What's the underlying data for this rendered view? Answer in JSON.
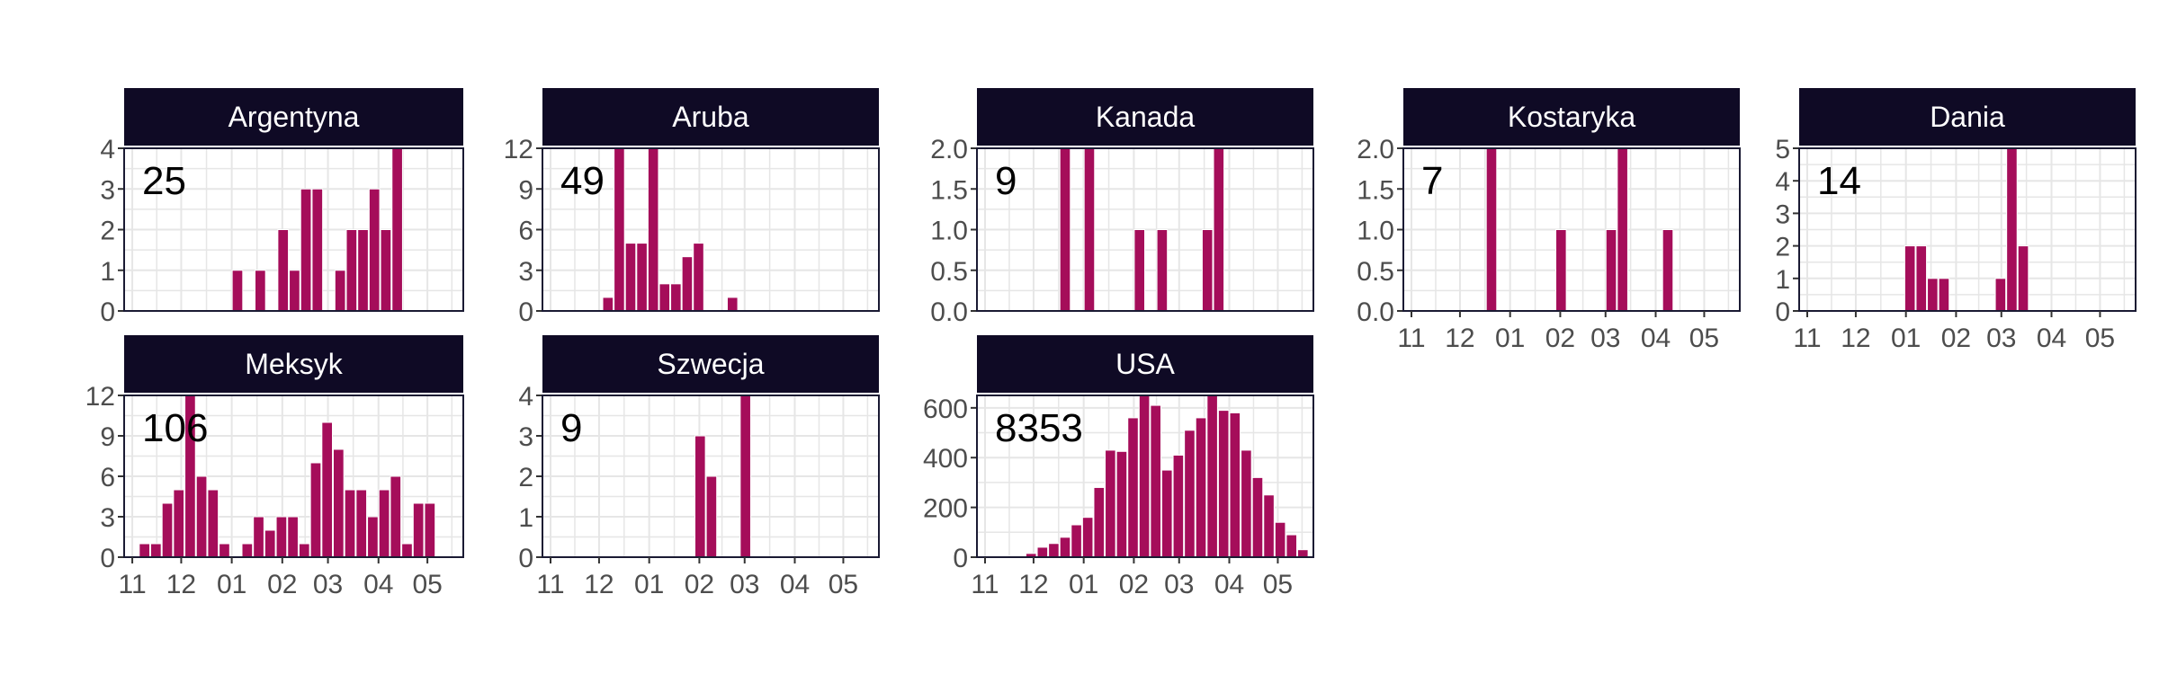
{
  "colors": {
    "bar": "#a50d5a",
    "strip": "#0f0a25",
    "panel_border": "#1a1a33",
    "grid": "#e6e6e6",
    "tick_text": "#4d4d4d"
  },
  "chart_data": [
    {
      "type": "bar",
      "title": "Argentyna",
      "count_label": "25",
      "ylim": [
        0,
        4
      ],
      "yticks": [
        "0",
        "1",
        "2",
        "3",
        "4"
      ],
      "xticks": [],
      "bars": [
        {
          "week": "2021-01-01",
          "value": 1
        },
        {
          "week": "2021-01-15",
          "value": 1
        },
        {
          "week": "2021-01-29",
          "value": 2
        },
        {
          "week": "2021-02-05",
          "value": 1
        },
        {
          "week": "2021-02-12",
          "value": 3
        },
        {
          "week": "2021-02-19",
          "value": 3
        },
        {
          "week": "2021-03-05",
          "value": 1
        },
        {
          "week": "2021-03-12",
          "value": 2
        },
        {
          "week": "2021-03-19",
          "value": 2
        },
        {
          "week": "2021-03-26",
          "value": 3
        },
        {
          "week": "2021-04-02",
          "value": 2
        },
        {
          "week": "2021-04-09",
          "value": 4
        }
      ]
    },
    {
      "type": "bar",
      "title": "Aruba",
      "count_label": "49",
      "ylim": [
        0,
        12
      ],
      "yticks": [
        "0",
        "3",
        "6",
        "9",
        "12"
      ],
      "xticks": [],
      "bars": [
        {
          "week": "2020-12-03",
          "value": 1
        },
        {
          "week": "2020-12-10",
          "value": 12
        },
        {
          "week": "2020-12-17",
          "value": 5
        },
        {
          "week": "2020-12-24",
          "value": 5
        },
        {
          "week": "2020-12-31",
          "value": 12
        },
        {
          "week": "2021-01-07",
          "value": 2
        },
        {
          "week": "2021-01-14",
          "value": 2
        },
        {
          "week": "2021-01-21",
          "value": 4
        },
        {
          "week": "2021-01-28",
          "value": 5
        },
        {
          "week": "2021-02-18",
          "value": 1
        }
      ]
    },
    {
      "type": "bar",
      "title": "Kanada",
      "count_label": "9",
      "ylim": [
        0,
        2
      ],
      "yticks": [
        "0.0",
        "0.5",
        "1.0",
        "1.5",
        "2.0"
      ],
      "xticks": [],
      "bars": [
        {
          "week": "2020-12-17",
          "value": 2
        },
        {
          "week": "2021-01-01",
          "value": 2
        },
        {
          "week": "2021-02-01",
          "value": 1
        },
        {
          "week": "2021-02-15",
          "value": 1
        },
        {
          "week": "2021-03-15",
          "value": 1
        },
        {
          "week": "2021-03-22",
          "value": 2
        }
      ]
    },
    {
      "type": "bar",
      "title": "Kostaryka",
      "count_label": "7",
      "ylim": [
        0,
        2
      ],
      "yticks": [
        "0.0",
        "0.5",
        "1.0",
        "1.5",
        "2.0"
      ],
      "xticks": [
        "11",
        "12",
        "01",
        "02",
        "03",
        "04",
        "05"
      ],
      "bars": [
        {
          "week": "2020-12-17",
          "value": 2
        },
        {
          "week": "2021-01-29",
          "value": 1
        },
        {
          "week": "2021-03-01",
          "value": 1
        },
        {
          "week": "2021-03-08",
          "value": 2
        },
        {
          "week": "2021-04-05",
          "value": 1
        }
      ]
    },
    {
      "type": "bar",
      "title": "Dania",
      "count_label": "14",
      "ylim": [
        0,
        5
      ],
      "yticks": [
        "0",
        "1",
        "2",
        "3",
        "4",
        "5"
      ],
      "xticks": [
        "11",
        "12",
        "01",
        "02",
        "03",
        "04",
        "05"
      ],
      "bars": [
        {
          "week": "2020-12-31",
          "value": 2
        },
        {
          "week": "2021-01-07",
          "value": 2
        },
        {
          "week": "2021-01-14",
          "value": 1
        },
        {
          "week": "2021-01-21",
          "value": 1
        },
        {
          "week": "2021-02-25",
          "value": 1
        },
        {
          "week": "2021-03-04",
          "value": 5
        },
        {
          "week": "2021-03-11",
          "value": 2
        }
      ]
    },
    {
      "type": "bar",
      "title": "Meksyk",
      "count_label": "106",
      "ylim": [
        0,
        12
      ],
      "yticks": [
        "0",
        "3",
        "6",
        "9",
        "12"
      ],
      "xticks": [
        "11",
        "12",
        "01",
        "02",
        "03",
        "04",
        "05"
      ],
      "bars": [
        {
          "week": "2020-11-05",
          "value": 1
        },
        {
          "week": "2020-11-12",
          "value": 1
        },
        {
          "week": "2020-11-19",
          "value": 4
        },
        {
          "week": "2020-11-26",
          "value": 5
        },
        {
          "week": "2020-12-03",
          "value": 12
        },
        {
          "week": "2020-12-10",
          "value": 6
        },
        {
          "week": "2020-12-17",
          "value": 5
        },
        {
          "week": "2020-12-24",
          "value": 1
        },
        {
          "week": "2021-01-07",
          "value": 1
        },
        {
          "week": "2021-01-14",
          "value": 3
        },
        {
          "week": "2021-01-21",
          "value": 2
        },
        {
          "week": "2021-01-28",
          "value": 3
        },
        {
          "week": "2021-02-04",
          "value": 3
        },
        {
          "week": "2021-02-11",
          "value": 1
        },
        {
          "week": "2021-02-18",
          "value": 7
        },
        {
          "week": "2021-02-25",
          "value": 10
        },
        {
          "week": "2021-03-04",
          "value": 8
        },
        {
          "week": "2021-03-11",
          "value": 5
        },
        {
          "week": "2021-03-18",
          "value": 5
        },
        {
          "week": "2021-03-25",
          "value": 3
        },
        {
          "week": "2021-04-01",
          "value": 5
        },
        {
          "week": "2021-04-08",
          "value": 6
        },
        {
          "week": "2021-04-15",
          "value": 1
        },
        {
          "week": "2021-04-22",
          "value": 4
        },
        {
          "week": "2021-04-29",
          "value": 4
        }
      ]
    },
    {
      "type": "bar",
      "title": "Szwecja",
      "count_label": "9",
      "ylim": [
        0,
        4
      ],
      "yticks": [
        "0",
        "1",
        "2",
        "3",
        "4"
      ],
      "xticks": [
        "11",
        "12",
        "01",
        "02",
        "03",
        "04",
        "05"
      ],
      "bars": [
        {
          "week": "2021-01-29",
          "value": 3
        },
        {
          "week": "2021-02-05",
          "value": 2
        },
        {
          "week": "2021-02-26",
          "value": 4
        }
      ]
    },
    {
      "type": "bar",
      "title": "USA",
      "count_label": "8353",
      "ylim": [
        0,
        650
      ],
      "yticks": [
        "0",
        "200",
        "400",
        "600"
      ],
      "xticks": [
        "11",
        "12",
        "01",
        "02",
        "03",
        "04",
        "05"
      ],
      "bars": [
        {
          "week": "2020-11-05",
          "value": 2
        },
        {
          "week": "2020-11-12",
          "value": 3
        },
        {
          "week": "2020-11-19",
          "value": 5
        },
        {
          "week": "2020-11-26",
          "value": 15
        },
        {
          "week": "2020-12-03",
          "value": 40
        },
        {
          "week": "2020-12-10",
          "value": 55
        },
        {
          "week": "2020-12-17",
          "value": 80
        },
        {
          "week": "2020-12-24",
          "value": 130
        },
        {
          "week": "2020-12-31",
          "value": 160
        },
        {
          "week": "2021-01-07",
          "value": 280
        },
        {
          "week": "2021-01-14",
          "value": 430
        },
        {
          "week": "2021-01-21",
          "value": 425
        },
        {
          "week": "2021-01-28",
          "value": 560
        },
        {
          "week": "2021-02-04",
          "value": 650
        },
        {
          "week": "2021-02-11",
          "value": 610
        },
        {
          "week": "2021-02-18",
          "value": 350
        },
        {
          "week": "2021-02-25",
          "value": 410
        },
        {
          "week": "2021-03-04",
          "value": 510
        },
        {
          "week": "2021-03-11",
          "value": 560
        },
        {
          "week": "2021-03-18",
          "value": 650
        },
        {
          "week": "2021-03-25",
          "value": 590
        },
        {
          "week": "2021-04-01",
          "value": 580
        },
        {
          "week": "2021-04-08",
          "value": 430
        },
        {
          "week": "2021-04-15",
          "value": 320
        },
        {
          "week": "2021-04-22",
          "value": 250
        },
        {
          "week": "2021-04-29",
          "value": 140
        },
        {
          "week": "2021-05-06",
          "value": 90
        },
        {
          "week": "2021-05-13",
          "value": 30
        }
      ]
    }
  ]
}
